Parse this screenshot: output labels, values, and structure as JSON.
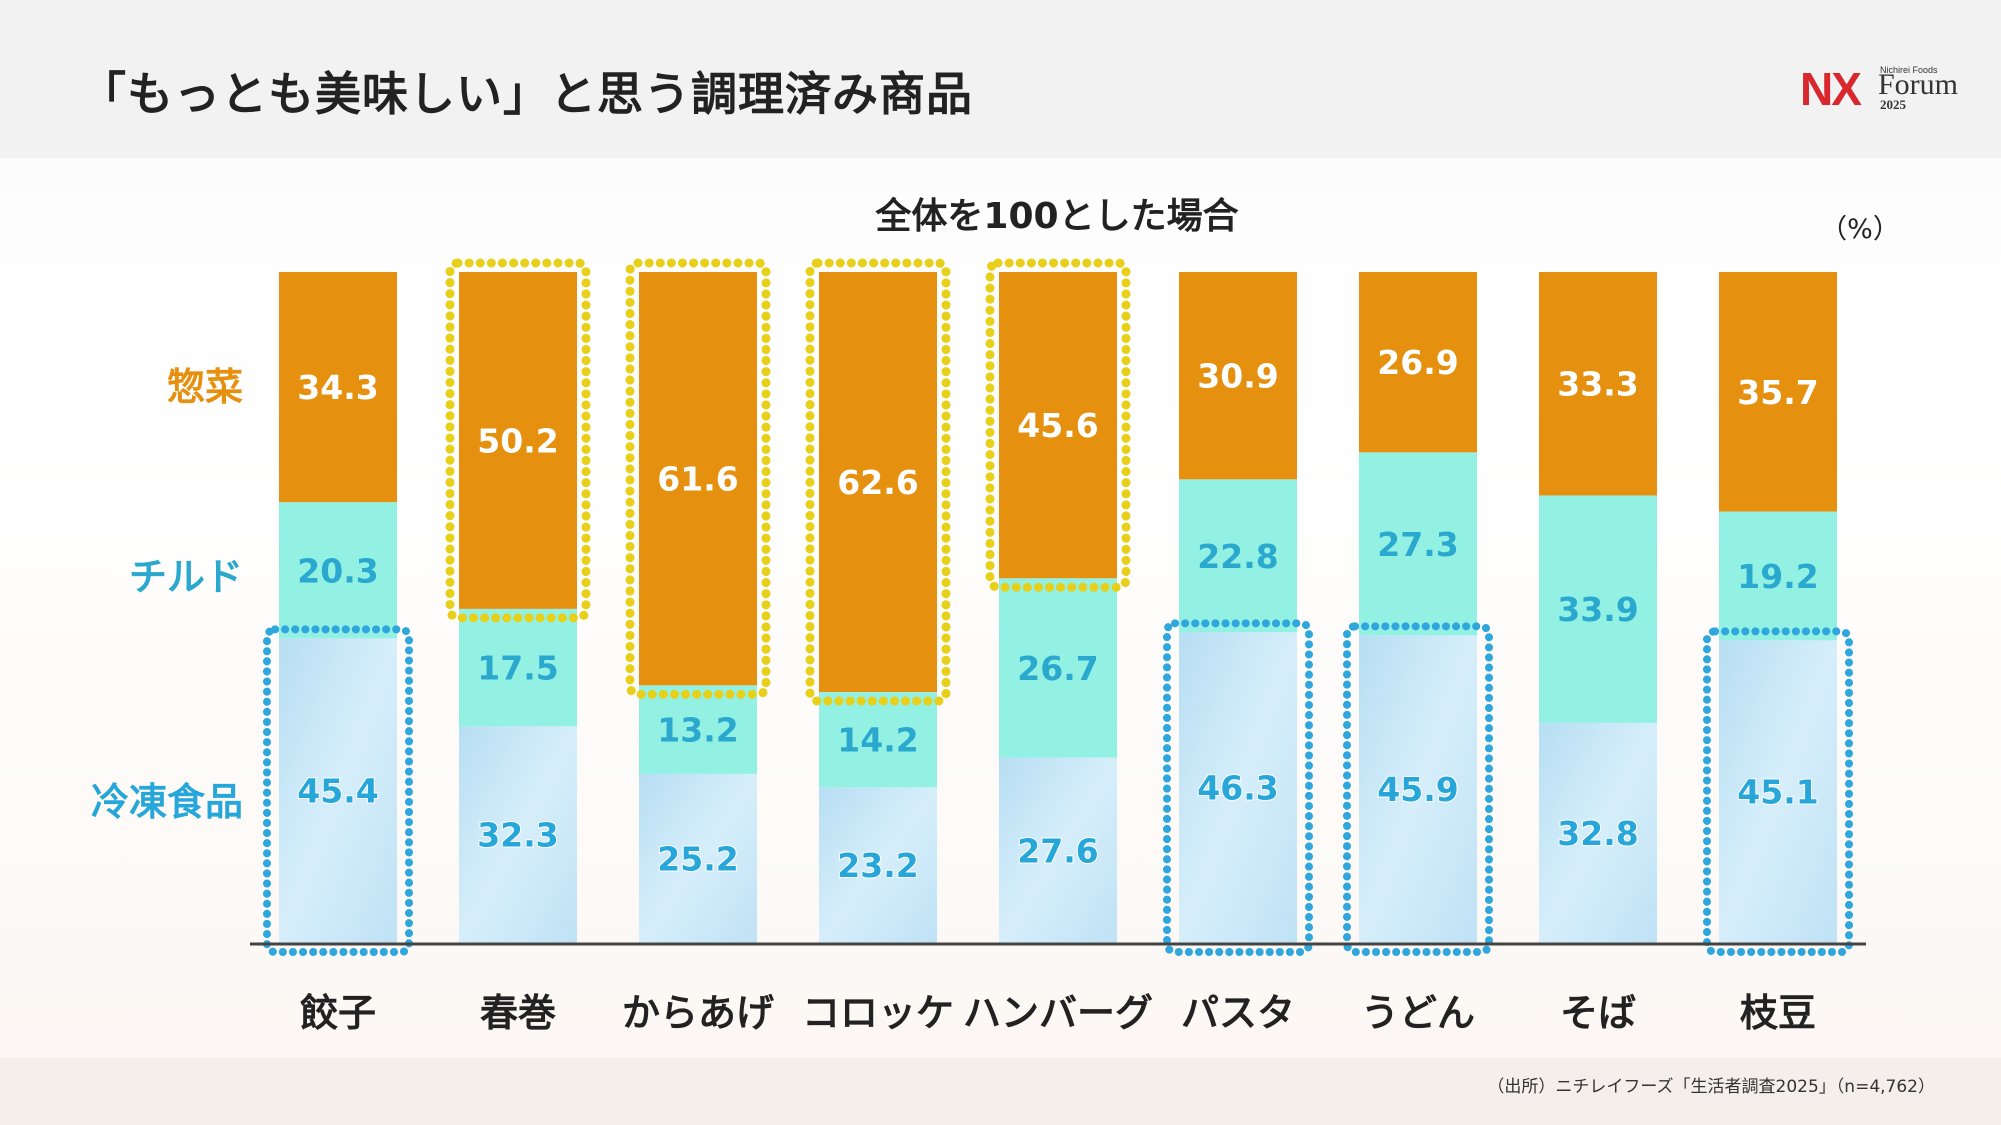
{
  "header": {
    "title": "「もっとも美味しい」と思う調理済み商品"
  },
  "logo": {
    "nx": "NX",
    "small": "Nichirei Foods",
    "forum": "Forum",
    "year": "2025"
  },
  "footer": {
    "source": "（出所）ニチレイフーズ「生活者調査2025」（n=4,762）"
  },
  "colors": {
    "souzai": "#e6900f",
    "chilled": "#93f1e4",
    "frozen": "#c5e6f6",
    "frozen_label": "#27a6d9",
    "highlight_yellow": "#e7cf1a",
    "highlight_blue": "#2fa7dd"
  },
  "chart_data": {
    "type": "bar",
    "stacked": true,
    "title": "全体を100とした場合",
    "unit_label": "（%）",
    "categories": [
      "餃子",
      "春巻",
      "からあげ",
      "コロッケ",
      "ハンバーグ",
      "パスタ",
      "うどん",
      "そば",
      "枝豆"
    ],
    "ylim": [
      0,
      100
    ],
    "grid": false,
    "legend": "left",
    "series": [
      {
        "name": "冷凍食品",
        "color": "#c5e6f6",
        "label_color": "#27a6d9",
        "values": [
          45.4,
          32.3,
          25.2,
          23.2,
          27.6,
          46.3,
          45.9,
          32.8,
          45.1
        ]
      },
      {
        "name": "チルド",
        "color": "#93f1e4",
        "label_color": "#2aa8ce",
        "values": [
          20.3,
          17.5,
          13.2,
          14.2,
          26.7,
          22.8,
          27.3,
          33.9,
          19.2
        ]
      },
      {
        "name": "惣菜",
        "color": "#e6900f",
        "label_color": "#e6900f",
        "values": [
          34.3,
          50.2,
          61.6,
          62.6,
          45.6,
          30.9,
          26.9,
          33.3,
          35.7
        ]
      }
    ],
    "highlights": {
      "souzai": [
        "春巻",
        "からあげ",
        "コロッケ",
        "ハンバーグ"
      ],
      "frozen": [
        "餃子",
        "パスタ",
        "うどん",
        "枝豆"
      ]
    }
  }
}
